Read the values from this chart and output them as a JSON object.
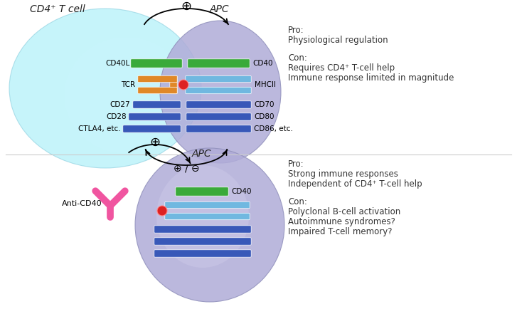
{
  "top_tcell_label": "CD4⁺ T cell",
  "top_apc_label": "APC",
  "bottom_apc_label": "APC",
  "top_tcell_color": "#6dd8ee",
  "top_apc_color": "#a8a0cc",
  "bottom_apc_color": "#a8a0cc",
  "receptor_colors": {
    "cd40l_green": "#3aaa3a",
    "tcr_orange": "#e08828",
    "mhcii_cyan": "#70b8e0",
    "peptide_red": "#dd2222",
    "blue_bars": "#3858b8",
    "antibody_pink": "#f055a0"
  },
  "font_size_label": 10,
  "font_size_mol": 7.5,
  "font_size_text": 8.5,
  "top_pro_lines": [
    "Pro:",
    "Physiological regulation"
  ],
  "top_con_lines": [
    "Con:",
    "Requires CD4⁺ T-cell help",
    "Immune response limited in magnitude"
  ],
  "bot_pro_lines": [
    "Pro:",
    "Strong immune responses",
    "Independent of CD4⁺ T-cell help"
  ],
  "bot_con_lines": [
    "Con:",
    "Polyclonal B-cell activation",
    "Autoimmune syndromes?",
    "Impaired T-cell memory?"
  ]
}
